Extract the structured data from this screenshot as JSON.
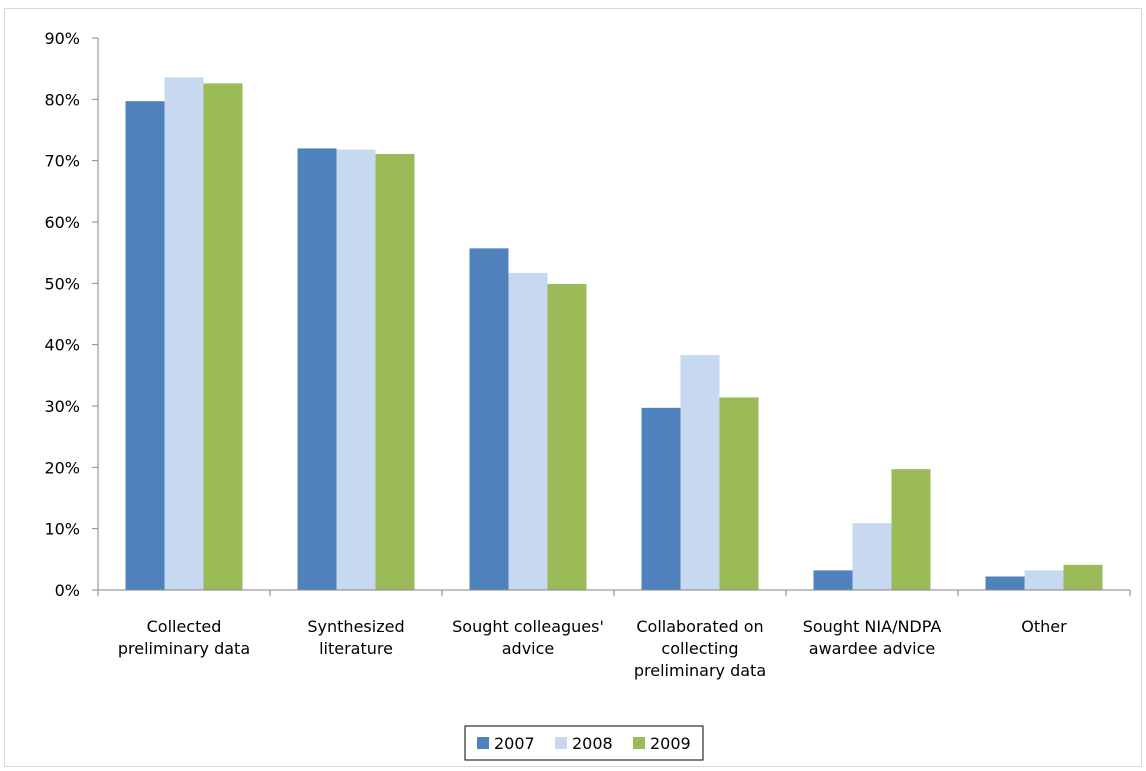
{
  "chart_data": {
    "type": "bar",
    "categories": [
      [
        "Collected",
        "preliminary data"
      ],
      [
        "Synthesized",
        "literature"
      ],
      [
        "Sought colleagues'",
        "advice"
      ],
      [
        "Collaborated on",
        "collecting",
        "preliminary data"
      ],
      [
        "Sought NIA/NDPA",
        "awardee advice"
      ],
      [
        "Other"
      ]
    ],
    "series": [
      {
        "name": "2007",
        "color": "#4f81bd",
        "values": [
          79.7,
          72.0,
          55.7,
          29.7,
          3.2,
          2.2
        ]
      },
      {
        "name": "2008",
        "color": "#c6d9f1",
        "values": [
          83.6,
          71.8,
          51.7,
          38.3,
          10.9,
          3.2
        ]
      },
      {
        "name": "2009",
        "color": "#9bbb59",
        "values": [
          82.6,
          71.1,
          49.9,
          31.4,
          19.7,
          4.1
        ]
      }
    ],
    "ylim": [
      0,
      90
    ],
    "yticks": [
      "0%",
      "10%",
      "20%",
      "30%",
      "40%",
      "50%",
      "60%",
      "70%",
      "80%",
      "90%"
    ],
    "legend_position": "bottom",
    "grid": false
  }
}
